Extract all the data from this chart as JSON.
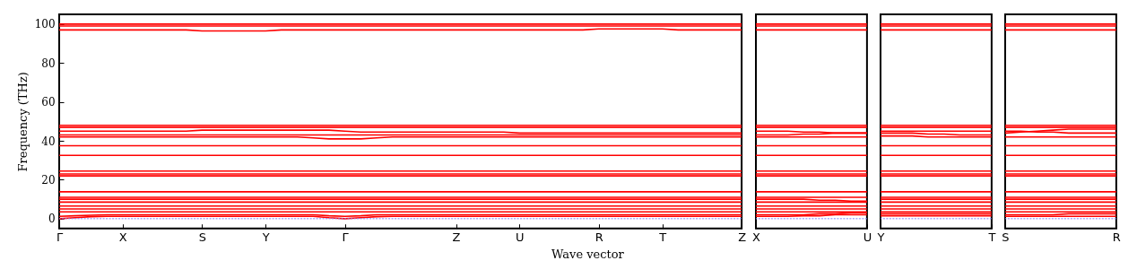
{
  "chart_data": [
    {
      "type": "line",
      "ylabel": "Frequency (THz)",
      "xlabel": "Wave vector",
      "categories": [
        "Γ",
        null,
        null,
        null,
        "X",
        null,
        null,
        null,
        null,
        "S",
        null,
        null,
        null,
        "Y",
        null,
        null,
        null,
        null,
        "Γ",
        null,
        null,
        null,
        null,
        null,
        null,
        "Z",
        null,
        null,
        null,
        "U",
        null,
        null,
        null,
        null,
        "R",
        null,
        null,
        null,
        "T",
        null,
        null,
        null,
        null,
        "Z"
      ],
      "ylim": [
        -5,
        105
      ],
      "yticks": [
        0,
        20,
        40,
        60,
        80,
        100
      ],
      "grid": false,
      "legend": false,
      "ref_lines": [
        {
          "axis": "y",
          "value": 0,
          "color": "#8080ff",
          "line_style": "dotted"
        }
      ],
      "series": [
        {
          "color": "#ff0000",
          "values": [
            100,
            100,
            100,
            100,
            100,
            100,
            100,
            100,
            100,
            100,
            100,
            100,
            100,
            100,
            100,
            100,
            100,
            100,
            100,
            100,
            100,
            100,
            100,
            100,
            100,
            100,
            100,
            100,
            100,
            100,
            100,
            100,
            100,
            100,
            100,
            100,
            100,
            100,
            100,
            100,
            100,
            100,
            100,
            100
          ]
        },
        {
          "color": "#ff0000",
          "values": [
            99,
            99,
            99,
            99,
            99,
            99,
            99,
            99,
            99,
            99,
            99,
            99,
            99,
            99,
            99,
            99,
            99,
            99,
            99,
            99,
            99,
            99,
            99,
            99,
            99,
            99,
            99,
            99,
            99,
            99,
            99,
            99,
            99,
            99,
            99,
            99,
            99,
            99,
            99,
            99,
            99,
            99,
            99,
            99
          ]
        },
        {
          "color": "#ff0000",
          "values": [
            97,
            97,
            97,
            97,
            97,
            97,
            97,
            97,
            97,
            96.5,
            96.5,
            96.5,
            96.5,
            96.5,
            97,
            97,
            97,
            97,
            97,
            97,
            97,
            97,
            97,
            97,
            97,
            97,
            97,
            97,
            97,
            97,
            97,
            97,
            97,
            97,
            97.5,
            97.5,
            97.5,
            97.5,
            97.5,
            97,
            97,
            97,
            97,
            97
          ]
        },
        {
          "color": "#ff0000",
          "values": [
            48,
            48,
            48,
            48,
            48,
            48,
            48,
            48,
            48,
            48,
            48,
            48,
            48,
            48,
            48,
            48,
            48,
            48,
            48,
            48,
            48,
            48,
            48,
            48,
            48,
            48,
            48,
            48,
            48,
            48,
            48,
            48,
            48,
            48,
            48,
            48,
            48,
            48,
            48,
            48,
            48,
            48,
            48,
            48
          ]
        },
        {
          "color": "#ff0000",
          "values": [
            47,
            47,
            47,
            47,
            47,
            47,
            47,
            47,
            47,
            47,
            47,
            47,
            47,
            47,
            47,
            47,
            47,
            47,
            47,
            47,
            47,
            47,
            47,
            47,
            47,
            47,
            47,
            47,
            47,
            47,
            47,
            47,
            47,
            47,
            47,
            47,
            47,
            47,
            47,
            47,
            47,
            47,
            47,
            47
          ]
        },
        {
          "color": "#ff0000",
          "values": [
            45,
            45,
            45,
            45,
            45,
            45,
            45,
            45,
            45,
            45.5,
            45.5,
            45.5,
            45.5,
            45.5,
            45.5,
            45.5,
            45.5,
            45.5,
            45,
            44.5,
            44.5,
            44.5,
            44.5,
            44.5,
            44.5,
            44.5,
            44.5,
            44.5,
            44.5,
            44,
            44,
            44,
            44,
            44,
            44,
            44,
            44,
            44,
            44,
            44,
            44,
            44,
            44,
            44
          ]
        },
        {
          "color": "#ff0000",
          "values": [
            43,
            43,
            43,
            43,
            43,
            43,
            43,
            43,
            43,
            43,
            43,
            43,
            43,
            43,
            43,
            43,
            43,
            43,
            43,
            43,
            43,
            43,
            43,
            43,
            43,
            43,
            43,
            43,
            43,
            43,
            43,
            43,
            43,
            43,
            43,
            43,
            43,
            43,
            43,
            43,
            43,
            43,
            43,
            43
          ]
        },
        {
          "color": "#ff0000",
          "values": [
            42,
            42,
            42,
            42,
            42,
            42,
            42,
            42,
            42,
            42,
            42,
            42,
            42,
            42,
            42,
            42,
            41.5,
            41,
            41,
            41,
            41.5,
            42,
            42,
            42,
            42,
            42,
            42,
            42,
            42,
            42,
            42,
            42,
            42,
            42,
            42,
            42,
            42,
            42,
            42,
            42,
            42,
            42,
            42,
            42
          ]
        },
        {
          "color": "#ff0000",
          "values": [
            37.5,
            37.5,
            37.5,
            37.5,
            37.5,
            37.5,
            37.5,
            37.5,
            37.5,
            37.5,
            37.5,
            37.5,
            37.5,
            37.5,
            37.5,
            37.5,
            37.5,
            37.5,
            37.5,
            37.5,
            37.5,
            37.5,
            37.5,
            37.5,
            37.5,
            37.5,
            37.5,
            37.5,
            37.5,
            37.5,
            37.5,
            37.5,
            37.5,
            37.5,
            37.5,
            37.5,
            37.5,
            37.5,
            37.5,
            37.5,
            37.5,
            37.5,
            37.5,
            37.5
          ]
        },
        {
          "color": "#ff0000",
          "values": [
            32.5,
            32.5,
            32.5,
            32.5,
            32.5,
            32.5,
            32.5,
            32.5,
            32.5,
            32.5,
            32.5,
            32.5,
            32.5,
            32.5,
            32.5,
            32.5,
            32.5,
            32.5,
            32.5,
            32.5,
            32.5,
            32.5,
            32.5,
            32.5,
            32.5,
            32.5,
            32.5,
            32.5,
            32.5,
            32.5,
            32.5,
            32.5,
            32.5,
            32.5,
            32.5,
            32.5,
            32.5,
            32.5,
            32.5,
            32.5,
            32.5,
            32.5,
            32.5,
            32.5
          ]
        },
        {
          "color": "#ff0000",
          "values": [
            24.5,
            24.5,
            24.5,
            24.5,
            24.5,
            24.5,
            24.5,
            24.5,
            24.5,
            24.5,
            24.5,
            24.5,
            24.5,
            24.5,
            24.5,
            24.5,
            24.5,
            24.5,
            24.5,
            24.5,
            24.5,
            24.5,
            24.5,
            24.5,
            24.5,
            24.5,
            24.5,
            24.5,
            24.5,
            24.5,
            24.5,
            24.5,
            24.5,
            24.5,
            24.5,
            24.5,
            24.5,
            24.5,
            24.5,
            24.5,
            24.5,
            24.5,
            24.5,
            24.5
          ]
        },
        {
          "color": "#ff0000",
          "values": [
            23,
            23,
            23,
            23,
            23,
            23,
            23,
            23,
            23,
            23,
            23,
            23,
            23,
            23,
            23,
            23,
            23,
            23,
            23,
            23,
            23,
            23,
            23,
            23,
            23,
            23,
            23,
            23,
            23,
            23,
            23,
            23,
            23,
            23,
            23,
            23,
            23,
            23,
            23,
            23,
            23,
            23,
            23,
            23
          ]
        },
        {
          "color": "#ff0000",
          "values": [
            22,
            22,
            22,
            22,
            22,
            22,
            22,
            22,
            22,
            22,
            22,
            22,
            22,
            22,
            22,
            22,
            22,
            22,
            22,
            22,
            22,
            22,
            22,
            22,
            22,
            22,
            22,
            22,
            22,
            22,
            22,
            22,
            22,
            22,
            22,
            22,
            22,
            22,
            22,
            22,
            22,
            22,
            22,
            22
          ]
        },
        {
          "color": "#ff0000",
          "values": [
            13.8,
            13.8,
            13.8,
            13.8,
            13.8,
            13.8,
            13.8,
            13.8,
            13.8,
            13.8,
            13.8,
            13.8,
            13.8,
            13.8,
            13.8,
            13.8,
            13.8,
            13.8,
            13.8,
            13.8,
            13.8,
            13.8,
            13.8,
            13.8,
            13.8,
            13.8,
            13.8,
            13.8,
            13.8,
            13.8,
            13.8,
            13.8,
            13.8,
            13.8,
            13.8,
            13.8,
            13.8,
            13.8,
            13.8,
            13.8,
            13.8,
            13.8,
            13.8,
            13.8
          ]
        },
        {
          "color": "#ff0000",
          "values": [
            11,
            11,
            11,
            11,
            11,
            11,
            11,
            11,
            11,
            11,
            11,
            11,
            11,
            11,
            11,
            11,
            11,
            11,
            11,
            11,
            11,
            11,
            11,
            11,
            11,
            11,
            11,
            11,
            11,
            11,
            11,
            11,
            11,
            11,
            11,
            11,
            11,
            11,
            11,
            11,
            11,
            11,
            11,
            11
          ]
        },
        {
          "color": "#ff0000",
          "values": [
            10,
            10,
            10,
            10,
            10,
            10,
            10,
            10,
            10,
            10,
            10,
            10,
            10,
            10,
            10,
            10,
            10,
            10,
            10,
            10,
            10,
            10,
            10,
            10,
            10,
            10,
            10,
            10,
            10,
            10,
            10,
            10,
            10,
            10,
            10,
            10,
            10,
            10,
            10,
            10,
            10,
            10,
            10,
            10
          ]
        },
        {
          "color": "#ff0000",
          "values": [
            8.5,
            8.5,
            8.5,
            8.5,
            8.5,
            8.5,
            8.5,
            8.5,
            8.5,
            8.5,
            8.5,
            8.5,
            8.5,
            8.5,
            8.5,
            8.5,
            8.5,
            8.5,
            8.5,
            8.5,
            8.5,
            8.5,
            8.5,
            8.5,
            8.5,
            8.5,
            8.5,
            8.5,
            8.5,
            8.5,
            8.5,
            8.5,
            8.5,
            8.5,
            8.5,
            8.5,
            8.5,
            8.5,
            8.5,
            8.5,
            8.5,
            8.5,
            8.5,
            8.5
          ]
        },
        {
          "color": "#ff0000",
          "values": [
            6.5,
            6.5,
            6.5,
            6.5,
            6.5,
            6.5,
            6.5,
            6.5,
            6.5,
            6.5,
            6.5,
            6.5,
            6.5,
            6.5,
            6.5,
            6.5,
            6.5,
            6.5,
            6.5,
            6.5,
            6.5,
            6.5,
            6.5,
            6.5,
            6.5,
            6.5,
            6.5,
            6.5,
            6.5,
            6.5,
            6.5,
            6.5,
            6.5,
            6.5,
            6.5,
            6.5,
            6.5,
            6.5,
            6.5,
            6.5,
            6.5,
            6.5,
            6.5,
            6.5
          ]
        },
        {
          "color": "#ff0000",
          "values": [
            5,
            5,
            5,
            5,
            5,
            5,
            5,
            5,
            5,
            5,
            5,
            5,
            5,
            5,
            5,
            5,
            5,
            5,
            5,
            5,
            5,
            5,
            5,
            5,
            5,
            5,
            5,
            5,
            5,
            5,
            5,
            5,
            5,
            5,
            5,
            5,
            5,
            5,
            5,
            5,
            5,
            5,
            5,
            5
          ]
        },
        {
          "color": "#ff0000",
          "values": [
            3.5,
            3.5,
            3.5,
            3.5,
            3.5,
            3.5,
            3.5,
            3.5,
            3.5,
            3.5,
            3.5,
            3.5,
            3.5,
            3.5,
            3.5,
            3.5,
            3.5,
            3.5,
            3.5,
            3.5,
            3.5,
            3.5,
            3.5,
            3.5,
            3.5,
            3.5,
            3.5,
            3.5,
            3.5,
            3.5,
            3.5,
            3.5,
            3.5,
            3.5,
            3.5,
            3.5,
            3.5,
            3.5,
            3.5,
            3.5,
            3.5,
            3.5,
            3.5,
            3.5
          ]
        },
        {
          "color": "#ff0000",
          "values": [
            1.2,
            1.5,
            1.8,
            2,
            2,
            2,
            2,
            2,
            2,
            2,
            2,
            2,
            2,
            2,
            2,
            2,
            2,
            1.5,
            1.2,
            1.5,
            2,
            2,
            2,
            2,
            2,
            2,
            2,
            2,
            2,
            2,
            2,
            2,
            2,
            2,
            2,
            2,
            2,
            2,
            2,
            2,
            2,
            2,
            2,
            2
          ]
        },
        {
          "color": "#ff0000",
          "values": [
            0,
            0.5,
            1,
            1.2,
            1.2,
            1.2,
            1.2,
            1.2,
            1.2,
            1.2,
            1.2,
            1.2,
            1.2,
            1.2,
            1.2,
            1.2,
            1.2,
            0.5,
            0,
            0.5,
            1,
            1.2,
            1.2,
            1.2,
            1.2,
            1.2,
            1.2,
            1.2,
            1.2,
            1.2,
            1.2,
            1.2,
            1.2,
            1.2,
            1.2,
            1.2,
            1.2,
            1.2,
            1.2,
            1.2,
            1.2,
            1.2,
            1.2,
            1.2
          ]
        }
      ]
    },
    {
      "type": "line",
      "categories": [
        "X",
        null,
        null,
        null,
        null,
        null,
        null,
        "U"
      ],
      "ylim": [
        -5,
        105
      ],
      "yticks": [
        0,
        20,
        40,
        60,
        80,
        100
      ],
      "tick_labels": "x",
      "grid": false,
      "legend": false,
      "ref_lines": [
        {
          "axis": "y",
          "value": 0,
          "color": "#8080ff",
          "line_style": "dotted"
        }
      ],
      "series": [
        {
          "color": "#ff0000",
          "values": [
            100,
            100,
            100,
            100,
            100,
            100,
            100,
            100
          ]
        },
        {
          "color": "#ff0000",
          "values": [
            99,
            99,
            99,
            99,
            99,
            99,
            99,
            99
          ]
        },
        {
          "color": "#ff0000",
          "values": [
            97,
            97,
            97,
            97,
            97,
            97,
            97,
            97
          ]
        },
        {
          "color": "#ff0000",
          "values": [
            48,
            48,
            48,
            48,
            48,
            48,
            48,
            48
          ]
        },
        {
          "color": "#ff0000",
          "values": [
            47,
            47,
            47,
            47,
            47,
            47,
            47,
            47
          ]
        },
        {
          "color": "#ff0000",
          "values": [
            45,
            45,
            45,
            44.5,
            44.5,
            44,
            44,
            44
          ]
        },
        {
          "color": "#ff0000",
          "values": [
            43,
            43,
            43,
            43.5,
            43.5,
            44,
            44,
            44
          ]
        },
        {
          "color": "#ff0000",
          "values": [
            42,
            42,
            42,
            42,
            42,
            42,
            42,
            42
          ]
        },
        {
          "color": "#ff0000",
          "values": [
            37.5,
            37.5,
            37.5,
            37.5,
            37.5,
            37.5,
            37.5,
            37.5
          ]
        },
        {
          "color": "#ff0000",
          "values": [
            32.5,
            32.5,
            32.5,
            32.5,
            32.5,
            32.5,
            32.5,
            32.5
          ]
        },
        {
          "color": "#ff0000",
          "values": [
            24.5,
            24.5,
            24.5,
            24.5,
            24.5,
            24.5,
            24.5,
            24.5
          ]
        },
        {
          "color": "#ff0000",
          "values": [
            23,
            23,
            23,
            23,
            23,
            23,
            23,
            23
          ]
        },
        {
          "color": "#ff0000",
          "values": [
            22,
            22,
            22,
            22,
            22,
            22,
            22,
            22
          ]
        },
        {
          "color": "#ff0000",
          "values": [
            13.8,
            13.8,
            13.8,
            13.8,
            13.8,
            13.8,
            13.8,
            13.8
          ]
        },
        {
          "color": "#ff0000",
          "values": [
            11,
            11,
            11,
            11,
            11,
            11,
            11,
            11
          ]
        },
        {
          "color": "#ff0000",
          "values": [
            10,
            10,
            10,
            10,
            9.5,
            9.5,
            9,
            9
          ]
        },
        {
          "color": "#ff0000",
          "values": [
            8.5,
            8.5,
            8.5,
            8.5,
            8.5,
            8.5,
            8.5,
            8.5
          ]
        },
        {
          "color": "#ff0000",
          "values": [
            6.5,
            6.5,
            6.5,
            6.5,
            6.5,
            6.5,
            6.5,
            6.5
          ]
        },
        {
          "color": "#ff0000",
          "values": [
            5,
            5,
            5,
            5,
            5,
            5,
            5,
            5
          ]
        },
        {
          "color": "#ff0000",
          "values": [
            3.5,
            3.5,
            3.5,
            3.5,
            3.5,
            3.5,
            3.5,
            3.5
          ]
        },
        {
          "color": "#ff0000",
          "values": [
            2,
            2,
            2,
            2,
            2.5,
            2.5,
            3,
            3
          ]
        },
        {
          "color": "#ff0000",
          "values": [
            1.2,
            1.2,
            1.2,
            1.5,
            1.5,
            2,
            2,
            2
          ]
        }
      ]
    },
    {
      "type": "line",
      "categories": [
        "Y",
        null,
        null,
        null,
        null,
        null,
        null,
        "T"
      ],
      "ylim": [
        -5,
        105
      ],
      "yticks": [
        0,
        20,
        40,
        60,
        80,
        100
      ],
      "tick_labels": "x",
      "grid": false,
      "legend": false,
      "ref_lines": [
        {
          "axis": "y",
          "value": 0,
          "color": "#8080ff",
          "line_style": "dotted"
        }
      ],
      "series": [
        {
          "color": "#ff0000",
          "values": [
            100,
            100,
            100,
            100,
            100,
            100,
            100,
            100
          ]
        },
        {
          "color": "#ff0000",
          "values": [
            99,
            99,
            99,
            99,
            99,
            99,
            99,
            99
          ]
        },
        {
          "color": "#ff0000",
          "values": [
            97,
            97,
            97,
            97,
            97,
            97,
            97,
            97
          ]
        },
        {
          "color": "#ff0000",
          "values": [
            48,
            48,
            48,
            48,
            48,
            48,
            48,
            48
          ]
        },
        {
          "color": "#ff0000",
          "values": [
            47,
            47,
            47,
            47,
            47,
            47,
            47,
            47
          ]
        },
        {
          "color": "#ff0000",
          "values": [
            45,
            45,
            45,
            45,
            45,
            45,
            45,
            45
          ]
        },
        {
          "color": "#ff0000",
          "values": [
            44,
            44,
            44,
            43.5,
            43.5,
            43,
            43,
            43
          ]
        },
        {
          "color": "#ff0000",
          "values": [
            42.5,
            42.5,
            42.5,
            42,
            42,
            42,
            42,
            42
          ]
        },
        {
          "color": "#ff0000",
          "values": [
            37.5,
            37.5,
            37.5,
            37.5,
            37.5,
            37.5,
            37.5,
            37.5
          ]
        },
        {
          "color": "#ff0000",
          "values": [
            32.5,
            32.5,
            32.5,
            32.5,
            32.5,
            32.5,
            32.5,
            32.5
          ]
        },
        {
          "color": "#ff0000",
          "values": [
            24.5,
            24.5,
            24.5,
            24.5,
            24.5,
            24.5,
            24.5,
            24.5
          ]
        },
        {
          "color": "#ff0000",
          "values": [
            23,
            23,
            23,
            23,
            23,
            23,
            23,
            23
          ]
        },
        {
          "color": "#ff0000",
          "values": [
            22,
            22,
            22,
            22,
            22,
            22,
            22,
            22
          ]
        },
        {
          "color": "#ff0000",
          "values": [
            13.8,
            13.8,
            13.8,
            13.8,
            13.8,
            13.8,
            13.8,
            13.8
          ]
        },
        {
          "color": "#ff0000",
          "values": [
            11,
            11,
            11,
            11,
            11,
            11,
            11,
            11
          ]
        },
        {
          "color": "#ff0000",
          "values": [
            10,
            10,
            10,
            10,
            10,
            10,
            10,
            10
          ]
        },
        {
          "color": "#ff0000",
          "values": [
            8.5,
            8.5,
            8.5,
            8.5,
            8.5,
            8.5,
            8.5,
            8.5
          ]
        },
        {
          "color": "#ff0000",
          "values": [
            6.5,
            6.5,
            6.5,
            6.5,
            6.5,
            6.5,
            6.5,
            6.5
          ]
        },
        {
          "color": "#ff0000",
          "values": [
            5,
            5,
            5,
            5,
            5,
            5,
            5,
            5
          ]
        },
        {
          "color": "#ff0000",
          "values": [
            3.5,
            3.5,
            3.5,
            3.5,
            3.5,
            3.5,
            3.5,
            3.5
          ]
        },
        {
          "color": "#ff0000",
          "values": [
            2.5,
            2.5,
            2.5,
            2.5,
            2.5,
            2.5,
            2.5,
            2.5
          ]
        },
        {
          "color": "#ff0000",
          "values": [
            1.5,
            1.5,
            1.5,
            1.5,
            1.5,
            1.5,
            1.5,
            1.5
          ]
        }
      ]
    },
    {
      "type": "line",
      "categories": [
        "S",
        null,
        null,
        null,
        null,
        null,
        null,
        "R"
      ],
      "ylim": [
        -5,
        105
      ],
      "yticks": [
        0,
        20,
        40,
        60,
        80,
        100
      ],
      "tick_labels": "x",
      "grid": false,
      "legend": false,
      "ref_lines": [
        {
          "axis": "y",
          "value": 0,
          "color": "#8080ff",
          "line_style": "dotted"
        }
      ],
      "series": [
        {
          "color": "#ff0000",
          "values": [
            100,
            100,
            100,
            100,
            100,
            100,
            100,
            100
          ]
        },
        {
          "color": "#ff0000",
          "values": [
            99,
            99,
            99,
            99,
            99,
            99,
            99,
            99
          ]
        },
        {
          "color": "#ff0000",
          "values": [
            97,
            97,
            97,
            97,
            97,
            97,
            97,
            97
          ]
        },
        {
          "color": "#ff0000",
          "values": [
            48,
            48,
            48,
            48,
            48,
            48,
            48,
            48
          ]
        },
        {
          "color": "#ff0000",
          "values": [
            47,
            47,
            47,
            47,
            47,
            47,
            47,
            47
          ]
        },
        {
          "color": "#ff0000",
          "values": [
            44,
            44.5,
            45,
            45.5,
            46,
            46,
            46,
            46
          ]
        },
        {
          "color": "#ff0000",
          "values": [
            45,
            45,
            44.5,
            44.5,
            44,
            44,
            44,
            44
          ]
        },
        {
          "color": "#ff0000",
          "values": [
            42,
            42,
            42,
            42,
            42,
            42,
            42,
            42
          ]
        },
        {
          "color": "#ff0000",
          "values": [
            37.5,
            37.5,
            37.5,
            37.5,
            37.5,
            37.5,
            37.5,
            37.5
          ]
        },
        {
          "color": "#ff0000",
          "values": [
            32.5,
            32.5,
            32.5,
            32.5,
            32.5,
            32.5,
            32.5,
            32.5
          ]
        },
        {
          "color": "#ff0000",
          "values": [
            24.5,
            24.5,
            24.5,
            24.5,
            24.5,
            24.5,
            24.5,
            24.5
          ]
        },
        {
          "color": "#ff0000",
          "values": [
            23,
            23,
            23,
            23,
            23,
            23,
            23,
            23
          ]
        },
        {
          "color": "#ff0000",
          "values": [
            22,
            22,
            22,
            22,
            22,
            22,
            22,
            22
          ]
        },
        {
          "color": "#ff0000",
          "values": [
            13.8,
            13.8,
            13.8,
            13.8,
            13.8,
            13.8,
            13.8,
            13.8
          ]
        },
        {
          "color": "#ff0000",
          "values": [
            11,
            11,
            11,
            11,
            11,
            11,
            11,
            11
          ]
        },
        {
          "color": "#ff0000",
          "values": [
            10,
            10,
            10,
            10,
            10,
            10,
            10,
            10
          ]
        },
        {
          "color": "#ff0000",
          "values": [
            8.5,
            8.5,
            8.5,
            8.5,
            8.5,
            8.5,
            8.5,
            8.5
          ]
        },
        {
          "color": "#ff0000",
          "values": [
            6.5,
            6.5,
            6.5,
            6.5,
            6.5,
            6.5,
            6.5,
            6.5
          ]
        },
        {
          "color": "#ff0000",
          "values": [
            5,
            5,
            5,
            5,
            5,
            5,
            5,
            5
          ]
        },
        {
          "color": "#ff0000",
          "values": [
            3.5,
            3.5,
            3.5,
            3.5,
            3.5,
            3.5,
            3.5,
            3.5
          ]
        },
        {
          "color": "#ff0000",
          "values": [
            2,
            2,
            2,
            2,
            2.5,
            2.5,
            2.5,
            2.5
          ]
        },
        {
          "color": "#ff0000",
          "values": [
            1.2,
            1.2,
            1.2,
            1.2,
            1.2,
            1.2,
            1.2,
            1.2
          ]
        }
      ]
    }
  ]
}
